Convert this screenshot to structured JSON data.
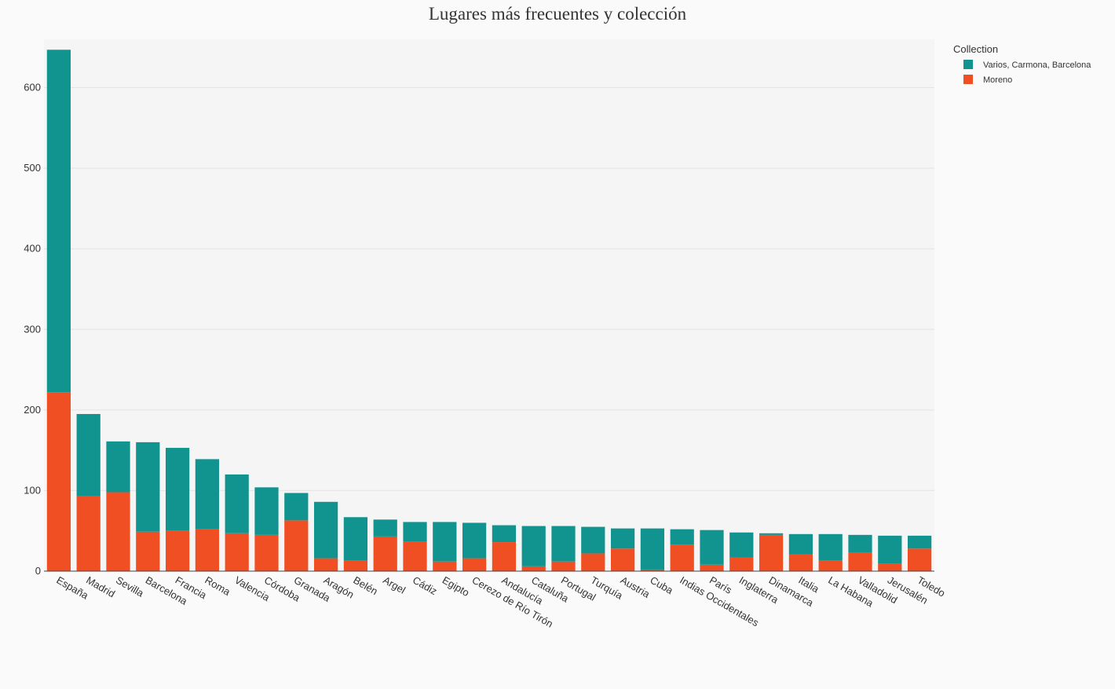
{
  "chart_data": {
    "type": "bar",
    "stacked": true,
    "title": "Lugares más frecuentes y colección",
    "xlabel": "",
    "ylabel": "",
    "ylim": [
      0,
      660
    ],
    "yticks": [
      0,
      100,
      200,
      300,
      400,
      500,
      600
    ],
    "grid": true,
    "legend_title": "Collection",
    "legend_position": "top-right",
    "categories": [
      "España",
      "Madrid",
      "Sevilla",
      "Barcelona",
      "Francia",
      "Roma",
      "Valencia",
      "Córdoba",
      "Granada",
      "Aragón",
      "Belén",
      "Argel",
      "Cádiz",
      "Egipto",
      "Cerezo de Río Tirón",
      "Andalucía",
      "Cataluña",
      "Portugal",
      "Turquía",
      "Austria",
      "Cuba",
      "Indias Occidentales",
      "París",
      "Inglaterra",
      "Dinamarca",
      "Italia",
      "La Habana",
      "Valladolid",
      "Jerusalén",
      "Toledo"
    ],
    "series": [
      {
        "name": "Moreno",
        "color": "#f04e23",
        "values": [
          222,
          93,
          98,
          49,
          50,
          52,
          47,
          45,
          63,
          16,
          13,
          43,
          37,
          12,
          16,
          36,
          6,
          12,
          22,
          28,
          2,
          33,
          8,
          17,
          45,
          21,
          13,
          23,
          9,
          28
        ]
      },
      {
        "name": "Varios, Carmona, Barcelona",
        "color": "#11948f",
        "values": [
          425,
          102,
          63,
          111,
          103,
          87,
          73,
          59,
          34,
          70,
          54,
          21,
          24,
          49,
          44,
          21,
          50,
          44,
          33,
          25,
          51,
          19,
          43,
          31,
          2,
          25,
          33,
          22,
          35,
          16
        ]
      }
    ]
  }
}
